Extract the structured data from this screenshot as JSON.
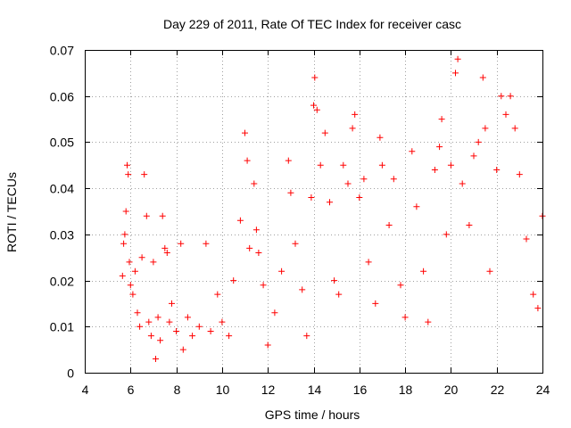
{
  "chart_data": {
    "type": "scatter",
    "title": "Day 229 of 2011, Rate Of TEC Index for receiver casc",
    "xlabel": "GPS time / hours",
    "ylabel": "ROTI / TECUs",
    "xlim": [
      4,
      24
    ],
    "ylim": [
      0,
      0.07
    ],
    "x_ticks": [
      4,
      6,
      8,
      10,
      12,
      14,
      16,
      18,
      20,
      22,
      24
    ],
    "x_tick_labels": [
      "4",
      "6",
      "8",
      "10",
      "12",
      "14",
      "16",
      "18",
      "20",
      "22",
      "24"
    ],
    "y_ticks": [
      0,
      0.01,
      0.02,
      0.03,
      0.04,
      0.05,
      0.06,
      0.07
    ],
    "y_tick_labels": [
      "0",
      "0.01",
      "0.02",
      "0.03",
      "0.04",
      "0.05",
      "0.06",
      "0.07"
    ],
    "grid": true,
    "marker": "plus",
    "color": "#ff0000",
    "data_start_hour": 5.6,
    "data_end_hour": 24,
    "series": [
      {
        "name": "casc",
        "points": [
          [
            5.65,
            0.021
          ],
          [
            5.7,
            0.028
          ],
          [
            5.75,
            0.03
          ],
          [
            5.8,
            0.035
          ],
          [
            5.85,
            0.045
          ],
          [
            5.9,
            0.043
          ],
          [
            5.95,
            0.024
          ],
          [
            6.0,
            0.019
          ],
          [
            6.1,
            0.017
          ],
          [
            6.2,
            0.022
          ],
          [
            6.3,
            0.013
          ],
          [
            6.4,
            0.01
          ],
          [
            6.5,
            0.025
          ],
          [
            6.6,
            0.043
          ],
          [
            6.7,
            0.034
          ],
          [
            6.8,
            0.011
          ],
          [
            6.9,
            0.008
          ],
          [
            7.0,
            0.024
          ],
          [
            7.1,
            0.003
          ],
          [
            7.2,
            0.012
          ],
          [
            7.3,
            0.007
          ],
          [
            7.4,
            0.034
          ],
          [
            7.5,
            0.027
          ],
          [
            7.6,
            0.026
          ],
          [
            7.7,
            0.011
          ],
          [
            7.8,
            0.015
          ],
          [
            8.0,
            0.009
          ],
          [
            8.2,
            0.028
          ],
          [
            8.3,
            0.005
          ],
          [
            8.5,
            0.012
          ],
          [
            8.7,
            0.008
          ],
          [
            9.0,
            0.01
          ],
          [
            9.3,
            0.028
          ],
          [
            9.5,
            0.009
          ],
          [
            9.8,
            0.017
          ],
          [
            10.0,
            0.011
          ],
          [
            10.3,
            0.008
          ],
          [
            10.5,
            0.02
          ],
          [
            10.8,
            0.033
          ],
          [
            11.0,
            0.052
          ],
          [
            11.1,
            0.046
          ],
          [
            11.2,
            0.027
          ],
          [
            11.4,
            0.041
          ],
          [
            11.5,
            0.031
          ],
          [
            11.6,
            0.026
          ],
          [
            11.8,
            0.019
          ],
          [
            12.0,
            0.006
          ],
          [
            12.3,
            0.013
          ],
          [
            12.6,
            0.022
          ],
          [
            12.9,
            0.046
          ],
          [
            13.0,
            0.039
          ],
          [
            13.2,
            0.028
          ],
          [
            13.5,
            0.018
          ],
          [
            13.7,
            0.008
          ],
          [
            13.9,
            0.038
          ],
          [
            14.0,
            0.058
          ],
          [
            14.05,
            0.064
          ],
          [
            14.15,
            0.057
          ],
          [
            14.3,
            0.045
          ],
          [
            14.5,
            0.052
          ],
          [
            14.7,
            0.037
          ],
          [
            14.9,
            0.02
          ],
          [
            15.1,
            0.017
          ],
          [
            15.3,
            0.045
          ],
          [
            15.5,
            0.041
          ],
          [
            15.7,
            0.053
          ],
          [
            15.8,
            0.056
          ],
          [
            16.0,
            0.038
          ],
          [
            16.2,
            0.042
          ],
          [
            16.4,
            0.024
          ],
          [
            16.7,
            0.015
          ],
          [
            16.9,
            0.051
          ],
          [
            17.0,
            0.045
          ],
          [
            17.3,
            0.032
          ],
          [
            17.5,
            0.042
          ],
          [
            17.8,
            0.019
          ],
          [
            18.0,
            0.012
          ],
          [
            18.3,
            0.048
          ],
          [
            18.5,
            0.036
          ],
          [
            18.8,
            0.022
          ],
          [
            19.0,
            0.011
          ],
          [
            19.3,
            0.044
          ],
          [
            19.5,
            0.049
          ],
          [
            19.6,
            0.055
          ],
          [
            19.8,
            0.03
          ],
          [
            20.0,
            0.045
          ],
          [
            20.2,
            0.065
          ],
          [
            20.3,
            0.068
          ],
          [
            20.5,
            0.041
          ],
          [
            20.8,
            0.032
          ],
          [
            21.0,
            0.047
          ],
          [
            21.2,
            0.05
          ],
          [
            21.4,
            0.064
          ],
          [
            21.5,
            0.053
          ],
          [
            21.7,
            0.022
          ],
          [
            22.0,
            0.044
          ],
          [
            22.2,
            0.06
          ],
          [
            22.4,
            0.056
          ],
          [
            22.6,
            0.06
          ],
          [
            22.8,
            0.053
          ],
          [
            23.0,
            0.043
          ],
          [
            23.3,
            0.029
          ],
          [
            23.6,
            0.017
          ],
          [
            23.8,
            0.014
          ],
          [
            24.0,
            0.034
          ]
        ]
      }
    ]
  }
}
